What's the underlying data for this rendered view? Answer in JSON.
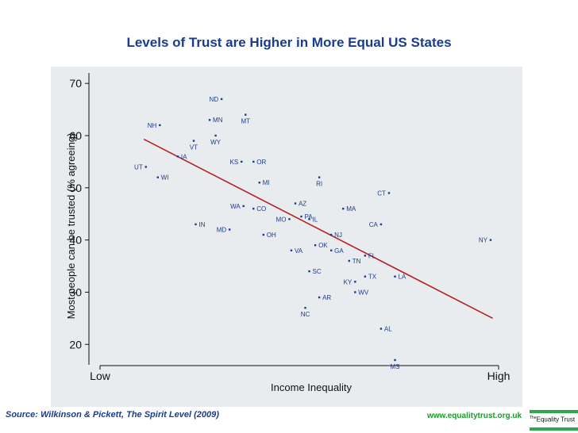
{
  "colors": {
    "title": "#1a3c8c",
    "trend": "#b22222",
    "points": "#1a3c8c",
    "labels": "#1a3c8c",
    "website": "#1d9a2c",
    "plot_bg": "#e9ecef"
  },
  "footer": {
    "source": "Source: Wilkinson & Pickett, The Spirit Level (2009)",
    "website": "www.equalitytrust.org.uk",
    "logo_the": "The",
    "logo_name": "Equality Trust"
  },
  "chart_data": {
    "type": "scatter",
    "title": "Levels of Trust are Higher in More Equal US States",
    "xlabel": "Income Inequality",
    "ylabel": "Most people can be trusted (% agreeing)",
    "xlim": [
      0,
      100
    ],
    "ylim": [
      17,
      72
    ],
    "x_tick_labels": [
      {
        "x": 0,
        "label": "Low"
      },
      {
        "x": 100,
        "label": "High"
      }
    ],
    "y_ticks": [
      20,
      30,
      40,
      50,
      60,
      70
    ],
    "grid": false,
    "legend": "none",
    "trendline": {
      "x1": 11,
      "y1": 59.3,
      "x2": 98.5,
      "y2": 25
    },
    "points": [
      {
        "label": "ND",
        "x": 30.5,
        "y": 67
      },
      {
        "label": "MN",
        "x": 27.5,
        "y": 63
      },
      {
        "label": "MT",
        "x": 36.5,
        "y": 64
      },
      {
        "label": "NH",
        "x": 15,
        "y": 62
      },
      {
        "label": "WY",
        "x": 29,
        "y": 60
      },
      {
        "label": "VT",
        "x": 23.5,
        "y": 59
      },
      {
        "label": "IA",
        "x": 19.5,
        "y": 56
      },
      {
        "label": "UT",
        "x": 11.5,
        "y": 54
      },
      {
        "label": "WI",
        "x": 14.5,
        "y": 52
      },
      {
        "label": "KS",
        "x": 35.5,
        "y": 55
      },
      {
        "label": "OR",
        "x": 38.5,
        "y": 55
      },
      {
        "label": "MI",
        "x": 40,
        "y": 51
      },
      {
        "label": "RI",
        "x": 55,
        "y": 52
      },
      {
        "label": "CT",
        "x": 72.5,
        "y": 49
      },
      {
        "label": "AZ",
        "x": 49,
        "y": 47
      },
      {
        "label": "MA",
        "x": 61,
        "y": 46
      },
      {
        "label": "WA",
        "x": 36,
        "y": 46.5
      },
      {
        "label": "CO",
        "x": 38.5,
        "y": 46
      },
      {
        "label": "PA",
        "x": 50.5,
        "y": 44.5
      },
      {
        "label": "MO",
        "x": 47.5,
        "y": 44
      },
      {
        "label": "IL",
        "x": 52.5,
        "y": 44
      },
      {
        "label": "IN",
        "x": 24,
        "y": 43
      },
      {
        "label": "CA",
        "x": 70.5,
        "y": 43
      },
      {
        "label": "MD",
        "x": 32.5,
        "y": 42
      },
      {
        "label": "OH",
        "x": 41,
        "y": 41
      },
      {
        "label": "NJ",
        "x": 58,
        "y": 41
      },
      {
        "label": "NY",
        "x": 98,
        "y": 40
      },
      {
        "label": "OK",
        "x": 54,
        "y": 39
      },
      {
        "label": "VA",
        "x": 48,
        "y": 38
      },
      {
        "label": "GA",
        "x": 58,
        "y": 38
      },
      {
        "label": "FL",
        "x": 66.5,
        "y": 37
      },
      {
        "label": "TN",
        "x": 62.5,
        "y": 36
      },
      {
        "label": "SC",
        "x": 52.5,
        "y": 34
      },
      {
        "label": "TX",
        "x": 66.5,
        "y": 33
      },
      {
        "label": "LA",
        "x": 74,
        "y": 33
      },
      {
        "label": "KY",
        "x": 64,
        "y": 32
      },
      {
        "label": "WV",
        "x": 64,
        "y": 30
      },
      {
        "label": "AR",
        "x": 55,
        "y": 29
      },
      {
        "label": "NC",
        "x": 51.5,
        "y": 27
      },
      {
        "label": "AL",
        "x": 70.5,
        "y": 23
      },
      {
        "label": "MS",
        "x": 74,
        "y": 17
      }
    ]
  }
}
